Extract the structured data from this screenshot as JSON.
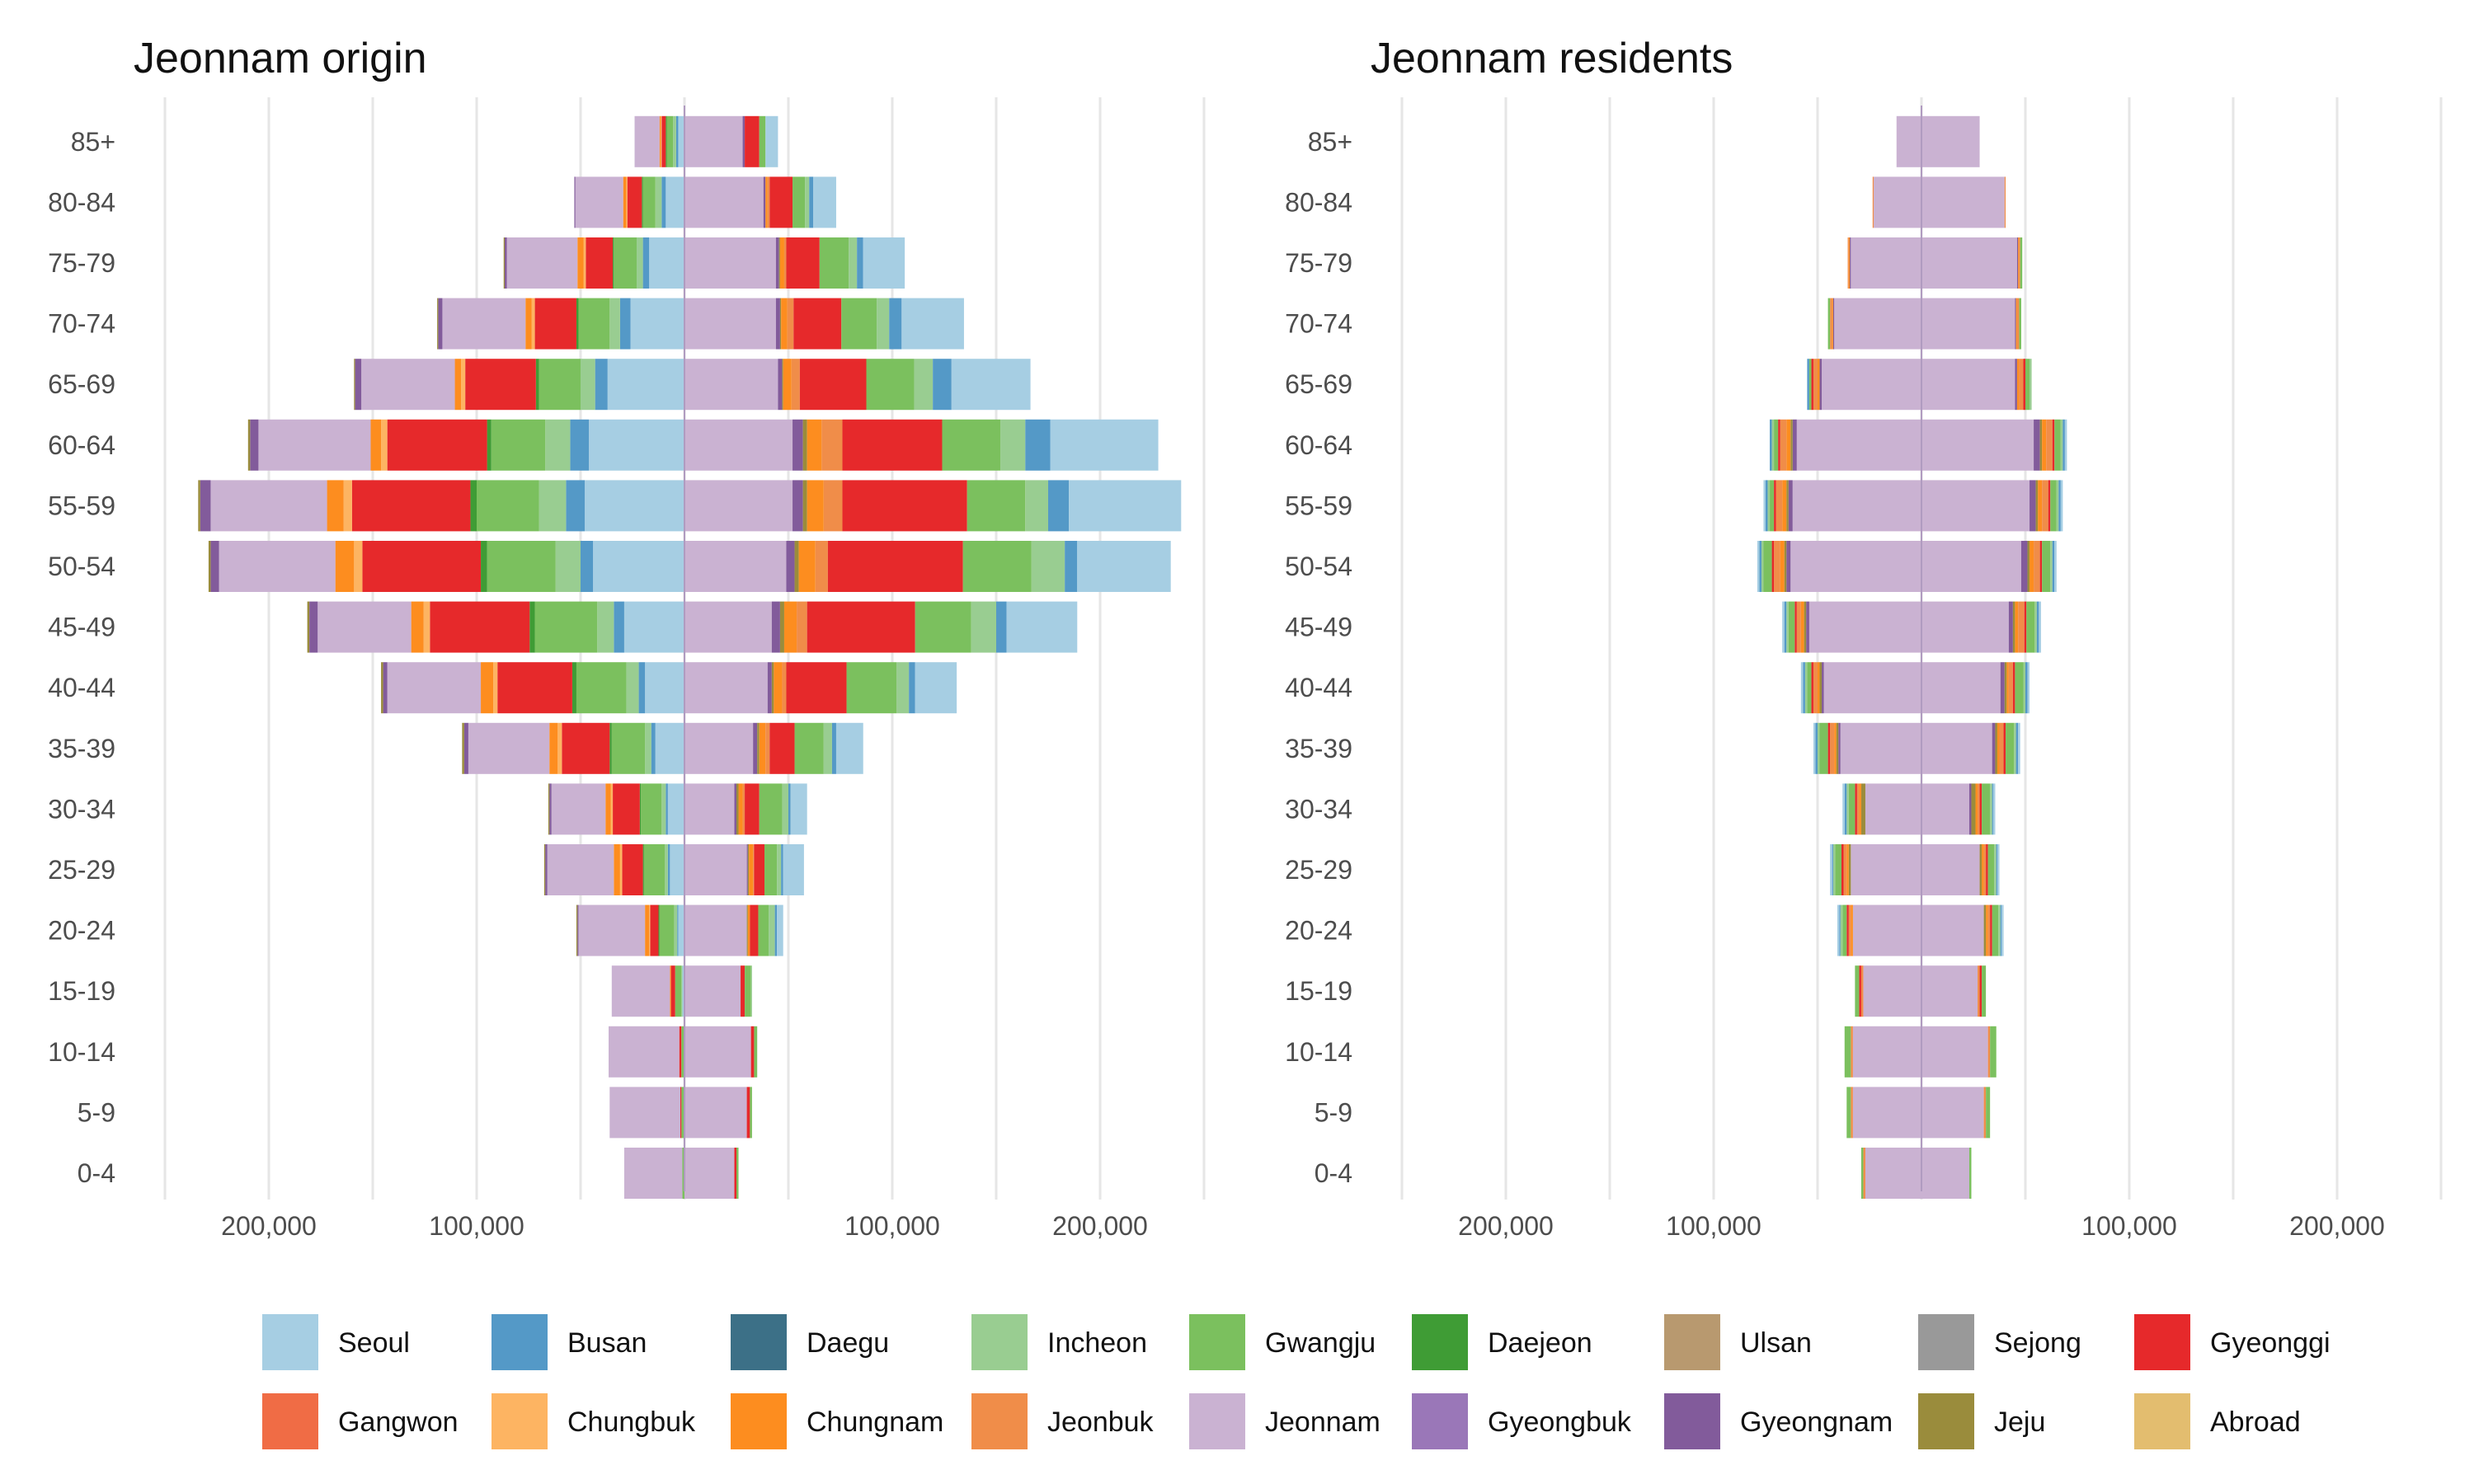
{
  "chart_data": [
    {
      "type": "bar",
      "orientation": "horizontal",
      "layout": "population-pyramid",
      "title": "Jeonnam origin",
      "categories": [
        "0-4",
        "5-9",
        "10-14",
        "15-19",
        "20-24",
        "25-29",
        "30-34",
        "35-39",
        "40-44",
        "45-49",
        "50-54",
        "55-59",
        "60-64",
        "65-69",
        "70-74",
        "75-79",
        "80-84",
        "85+"
      ],
      "xlim": [
        -250000,
        250000
      ],
      "xticks": [
        -200000,
        -100000,
        0,
        100000,
        200000
      ],
      "xtick_labels": [
        "200,000",
        "100,000",
        "0",
        "100,000",
        "200,000"
      ],
      "left_series": [
        {
          "name": "Seoul",
          "values": [
            0,
            0,
            0,
            1000,
            3000,
            7000,
            8000,
            14000,
            19000,
            29000,
            44000,
            48000,
            46000,
            37000,
            26000,
            17000,
            9000,
            3000
          ]
        },
        {
          "name": "Busan",
          "values": [
            0,
            0,
            0,
            0,
            500,
            1000,
            1000,
            2000,
            3000,
            5000,
            6000,
            9000,
            9000,
            6000,
            5000,
            3000,
            2000,
            1000
          ]
        },
        {
          "name": "Incheon",
          "values": [
            0,
            0,
            0,
            500,
            1500,
            1500,
            2000,
            3000,
            6000,
            8000,
            12000,
            13000,
            12000,
            7000,
            5000,
            3000,
            3000,
            1500
          ]
        },
        {
          "name": "Gwangju",
          "values": [
            1000,
            1500,
            1500,
            3000,
            7000,
            10000,
            10000,
            16000,
            24000,
            30000,
            33000,
            30000,
            26000,
            20000,
            15000,
            11000,
            6000,
            3000
          ]
        },
        {
          "name": "Daejeon",
          "values": [
            0,
            0,
            0,
            0,
            500,
            500,
            500,
            1000,
            2000,
            2500,
            3000,
            3000,
            2000,
            1500,
            1000,
            500,
            500,
            500
          ]
        },
        {
          "name": "Gyeonggi",
          "values": [
            0,
            500,
            1000,
            2000,
            4000,
            10000,
            13000,
            23000,
            36000,
            48000,
            57000,
            57000,
            48000,
            34000,
            20000,
            13000,
            7000,
            2000
          ]
        },
        {
          "name": "Chungbuk",
          "values": [
            0,
            0,
            0,
            0,
            500,
            1000,
            1000,
            2000,
            2000,
            3000,
            4000,
            4000,
            3000,
            2000,
            1500,
            1000,
            500,
            500
          ]
        },
        {
          "name": "Chungnam",
          "values": [
            0,
            0,
            0,
            500,
            2000,
            3000,
            2500,
            4000,
            6000,
            6000,
            9000,
            8000,
            5000,
            3000,
            3000,
            3000,
            1500,
            500
          ]
        },
        {
          "name": "Jeonnam",
          "values": [
            28000,
            34000,
            34000,
            28000,
            32000,
            32000,
            26000,
            39000,
            45000,
            45000,
            56000,
            56000,
            54000,
            45000,
            40000,
            34000,
            23000,
            12000
          ]
        },
        {
          "name": "Gyeongnam",
          "values": [
            0,
            0,
            0,
            0,
            500,
            1000,
            1000,
            2000,
            2000,
            4000,
            4000,
            5000,
            4000,
            3000,
            2000,
            1000,
            500,
            0
          ]
        },
        {
          "name": "Jeju",
          "values": [
            0,
            0,
            0,
            0,
            500,
            500,
            500,
            1000,
            1000,
            1000,
            1000,
            1000,
            1000,
            500,
            500,
            500,
            0,
            0
          ]
        }
      ],
      "right_series": [
        {
          "name": "Jeonnam",
          "values": [
            24000,
            30000,
            32000,
            27000,
            30000,
            30000,
            24000,
            33000,
            40000,
            42000,
            49000,
            52000,
            52000,
            45000,
            44000,
            44000,
            38000,
            28000
          ]
        },
        {
          "name": "Gyeongnam",
          "values": [
            0,
            0,
            0,
            0,
            0,
            500,
            1000,
            2000,
            2000,
            4000,
            4000,
            5000,
            5000,
            2000,
            2000,
            1500,
            1000,
            1000
          ]
        },
        {
          "name": "Jeju",
          "values": [
            0,
            0,
            0,
            0,
            500,
            500,
            1000,
            1000,
            1000,
            2000,
            2000,
            2000,
            2000,
            500,
            500,
            500,
            0,
            0
          ]
        },
        {
          "name": "Chungnam",
          "values": [
            0,
            0,
            0,
            0,
            1000,
            2000,
            2000,
            3000,
            4000,
            6000,
            8000,
            8000,
            7000,
            4000,
            3000,
            2000,
            1000,
            0
          ]
        },
        {
          "name": "Jeonbuk",
          "values": [
            0,
            0,
            0,
            0,
            0,
            500,
            1000,
            2000,
            2000,
            5000,
            6000,
            9000,
            10000,
            4000,
            3000,
            1000,
            1000,
            0
          ]
        },
        {
          "name": "Gyeonggi",
          "values": [
            1000,
            1500,
            1500,
            2000,
            4000,
            5000,
            7000,
            12000,
            29000,
            52000,
            65000,
            60000,
            48000,
            32000,
            23000,
            16000,
            11000,
            7000
          ]
        },
        {
          "name": "Gwangju",
          "values": [
            1000,
            1000,
            1500,
            3000,
            5000,
            6000,
            11000,
            14000,
            24000,
            27000,
            33000,
            28000,
            28000,
            23000,
            17000,
            14000,
            6000,
            3000
          ]
        },
        {
          "name": "Incheon",
          "values": [
            0,
            0,
            0,
            500,
            3000,
            2000,
            3000,
            4000,
            6000,
            12000,
            16000,
            11000,
            12000,
            9000,
            6000,
            4000,
            2000,
            0
          ]
        },
        {
          "name": "Busan",
          "values": [
            0,
            0,
            0,
            0,
            1000,
            1000,
            1000,
            2000,
            3000,
            5000,
            6000,
            10000,
            12000,
            9000,
            6000,
            3000,
            2000,
            0
          ]
        },
        {
          "name": "Seoul",
          "values": [
            0,
            0,
            0,
            0,
            3000,
            10000,
            8000,
            13000,
            20000,
            34000,
            45000,
            54000,
            52000,
            38000,
            30000,
            20000,
            11000,
            6000
          ]
        }
      ]
    },
    {
      "type": "bar",
      "orientation": "horizontal",
      "layout": "population-pyramid",
      "title": "Jeonnam residents",
      "categories": [
        "0-4",
        "5-9",
        "10-14",
        "15-19",
        "20-24",
        "25-29",
        "30-34",
        "35-39",
        "40-44",
        "45-49",
        "50-54",
        "55-59",
        "60-64",
        "65-69",
        "70-74",
        "75-79",
        "80-84",
        "85+"
      ],
      "xlim": [
        -250000,
        250000
      ],
      "xticks": [
        -200000,
        -100000,
        0,
        100000,
        200000
      ],
      "xtick_labels": [
        "200,000",
        "100,000",
        "0",
        "100,000",
        "200,000"
      ],
      "left_series": [
        {
          "name": "Jeonnam",
          "values": [
            27000,
            33000,
            33000,
            28000,
            33000,
            34000,
            27000,
            39000,
            47000,
            54000,
            63000,
            62000,
            60000,
            48000,
            42000,
            34000,
            23000,
            12000
          ]
        },
        {
          "name": "Gyeongnam",
          "values": [
            0,
            0,
            0,
            0,
            0,
            0,
            0,
            1000,
            1000,
            1500,
            2000,
            2000,
            2000,
            1000,
            500,
            500,
            0,
            0
          ]
        },
        {
          "name": "Jeju",
          "values": [
            0,
            0,
            0,
            0,
            0,
            1000,
            2000,
            1000,
            1000,
            1000,
            1000,
            1000,
            1000,
            0,
            0,
            0,
            0,
            0
          ]
        },
        {
          "name": "Chungnam",
          "values": [
            0,
            0,
            0,
            0,
            1000,
            1000,
            1000,
            1000,
            1000,
            1500,
            2000,
            2000,
            2000,
            1000,
            500,
            500,
            0,
            0
          ]
        },
        {
          "name": "Jeonbuk",
          "values": [
            1000,
            1000,
            1000,
            1000,
            1000,
            1500,
            1000,
            2000,
            2000,
            2000,
            3000,
            3000,
            3000,
            2000,
            1000,
            500,
            500,
            0
          ]
        },
        {
          "name": "Gyeonggi",
          "values": [
            0,
            0,
            0,
            1000,
            1000,
            1000,
            1000,
            1000,
            1000,
            1000,
            1000,
            1000,
            1000,
            1000,
            0,
            0,
            0,
            0
          ]
        },
        {
          "name": "Gwangju",
          "values": [
            1000,
            2000,
            3000,
            2000,
            2000,
            3000,
            3000,
            4000,
            2000,
            3000,
            4000,
            2000,
            2000,
            1000,
            1000,
            0,
            0,
            0
          ]
        },
        {
          "name": "Incheon",
          "values": [
            0,
            0,
            0,
            0,
            1000,
            1000,
            1000,
            1000,
            1000,
            1000,
            1000,
            1000,
            1000,
            0,
            0,
            0,
            0,
            0
          ]
        },
        {
          "name": "Busan",
          "values": [
            0,
            0,
            0,
            0,
            500,
            500,
            1000,
            1000,
            1000,
            1000,
            1000,
            1000,
            1000,
            1000,
            0,
            0,
            0,
            0
          ]
        },
        {
          "name": "Seoul",
          "values": [
            0,
            0,
            0,
            0,
            1000,
            1000,
            1000,
            1000,
            1000,
            1000,
            1000,
            1000,
            0,
            0,
            0,
            0,
            0,
            0
          ]
        }
      ],
      "right_series": [
        {
          "name": "Jeonnam",
          "values": [
            23000,
            30000,
            32000,
            27000,
            30000,
            28000,
            23000,
            34000,
            38000,
            42000,
            48000,
            52000,
            54000,
            45000,
            45000,
            46000,
            40000,
            28000
          ]
        },
        {
          "name": "Gyeongnam",
          "values": [
            0,
            0,
            0,
            0,
            0,
            0,
            1000,
            1500,
            2000,
            2000,
            3000,
            3000,
            3000,
            1000,
            500,
            500,
            0,
            0
          ]
        },
        {
          "name": "Jeju",
          "values": [
            0,
            0,
            0,
            0,
            1000,
            1000,
            2000,
            1000,
            1000,
            1000,
            1000,
            1000,
            1000,
            0,
            0,
            0,
            0,
            0
          ]
        },
        {
          "name": "Chungnam",
          "values": [
            0,
            0,
            0,
            0,
            1000,
            1000,
            1000,
            1000,
            1000,
            1500,
            2000,
            2000,
            2000,
            1000,
            500,
            500,
            0,
            0
          ]
        },
        {
          "name": "Jeonbuk",
          "values": [
            0,
            1000,
            1000,
            1000,
            1000,
            1000,
            1000,
            2000,
            2000,
            3000,
            3000,
            3000,
            3000,
            2000,
            1000,
            500,
            500,
            0
          ]
        },
        {
          "name": "Gyeonggi",
          "values": [
            0,
            0,
            0,
            1000,
            1000,
            1000,
            1000,
            1000,
            1000,
            1000,
            1000,
            1000,
            1000,
            1000,
            0,
            0,
            0,
            0
          ]
        },
        {
          "name": "Gwangju",
          "values": [
            1000,
            2000,
            3000,
            2000,
            3000,
            3000,
            4000,
            4000,
            4000,
            4000,
            4000,
            3000,
            3000,
            2000,
            1000,
            1000,
            0,
            0
          ]
        },
        {
          "name": "Incheon",
          "values": [
            0,
            0,
            0,
            0,
            1000,
            1000,
            1000,
            1000,
            1000,
            1000,
            1000,
            1000,
            1000,
            1000,
            0,
            0,
            0,
            0
          ]
        },
        {
          "name": "Busan",
          "values": [
            0,
            0,
            0,
            0,
            500,
            500,
            500,
            1000,
            1000,
            1000,
            1000,
            1000,
            1000,
            0,
            0,
            0,
            0,
            0
          ]
        },
        {
          "name": "Seoul",
          "values": [
            0,
            0,
            0,
            0,
            1000,
            1000,
            1000,
            1000,
            1000,
            1000,
            1000,
            1000,
            1000,
            0,
            0,
            0,
            0,
            0
          ]
        }
      ]
    }
  ],
  "legend": {
    "position": "bottom",
    "items": [
      {
        "name": "Seoul",
        "color": "#a6cee3"
      },
      {
        "name": "Busan",
        "color": "#5499c7"
      },
      {
        "name": "Daegu",
        "color": "#3c7087"
      },
      {
        "name": "Incheon",
        "color": "#99cd91"
      },
      {
        "name": "Gwangju",
        "color": "#7bc05e"
      },
      {
        "name": "Daejeon",
        "color": "#3f9c35"
      },
      {
        "name": "Ulsan",
        "color": "#b8996f"
      },
      {
        "name": "Sejong",
        "color": "#999999"
      },
      {
        "name": "Gyeonggi",
        "color": "#e6292b"
      },
      {
        "name": "Gangwon",
        "color": "#f06c45"
      },
      {
        "name": "Chungbuk",
        "color": "#fdb462"
      },
      {
        "name": "Chungnam",
        "color": "#fd8d1f"
      },
      {
        "name": "Jeonbuk",
        "color": "#f08d49"
      },
      {
        "name": "Jeonnam",
        "color": "#cab2d2"
      },
      {
        "name": "Gyeongbuk",
        "color": "#9a77b8"
      },
      {
        "name": "Gyeongnam",
        "color": "#825b9b"
      },
      {
        "name": "Jeju",
        "color": "#9a8c3c"
      },
      {
        "name": "Abroad",
        "color": "#e3bd6f"
      }
    ]
  }
}
